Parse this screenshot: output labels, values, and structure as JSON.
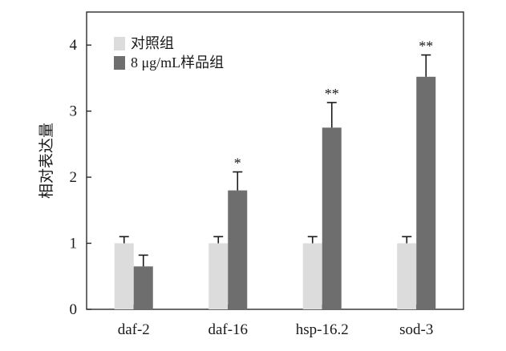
{
  "chart_data": {
    "type": "bar",
    "categories": [
      "daf-2",
      "daf-16",
      "hsp-16.2",
      "sod-3"
    ],
    "series": [
      {
        "name": "对照组",
        "values": [
          1.0,
          1.0,
          1.0,
          1.0
        ],
        "errors": [
          0.1,
          0.1,
          0.1,
          0.1
        ],
        "color": "#dcdcdc"
      },
      {
        "name": "8 μg/mL样品组",
        "values": [
          0.65,
          1.8,
          2.75,
          3.52
        ],
        "errors": [
          0.17,
          0.28,
          0.38,
          0.33
        ],
        "color": "#6e6e6e"
      }
    ],
    "significance": [
      "",
      "*",
      "**",
      "**"
    ],
    "ylabel": "相对表达量",
    "xlabel": "",
    "ylim": [
      0,
      4.5
    ],
    "yticks": [
      0,
      1,
      2,
      3,
      4
    ],
    "grid": false,
    "legend_position": "top-left"
  }
}
